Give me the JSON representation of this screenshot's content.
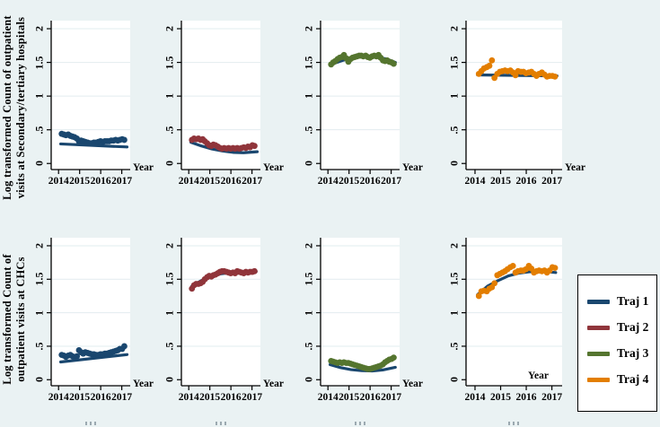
{
  "figure": {
    "background": "#eaf2f3",
    "row_labels": [
      {
        "line1": "Log transformed Count of outpatient",
        "line2": "visits at Secondary/tertiary hospitals"
      },
      {
        "line1": "Log transformed Count of",
        "line2": "outpatient visits at CHCs"
      }
    ]
  },
  "legend": {
    "items": [
      {
        "label": "Traj 1",
        "color": "#1a476f"
      },
      {
        "label": "Traj 2",
        "color": "#90353b"
      },
      {
        "label": "Traj 3",
        "color": "#55752f"
      },
      {
        "label": "Traj 4",
        "color": "#e37e00"
      }
    ]
  },
  "colors": {
    "background": "#eaf2f3",
    "plot_background": "#ffffff",
    "gridline": "#e2ecef",
    "axis": "#000000",
    "fit_line": "#1a476f"
  },
  "chart_data": {
    "type": "scatter",
    "xlabel": "Year",
    "xticks": [
      "2014",
      "2015",
      "2016",
      "2017"
    ],
    "yticks": [
      {
        "v": 0,
        "label": "0"
      },
      {
        "v": 0.5,
        "label": ".5"
      },
      {
        "v": 1,
        "label": "1"
      },
      {
        "v": 1.5,
        "label": "1.5"
      },
      {
        "v": 2,
        "label": "2"
      }
    ],
    "xlim": [
      2013.65,
      2017.4
    ],
    "ylim": [
      -0.09,
      2.12
    ],
    "grid": true,
    "legend_position": "right-of-bottom-row",
    "x_shared": [
      2014.15,
      2014.25,
      2014.35,
      2014.46,
      2014.56,
      2014.66,
      2014.76,
      2014.87,
      2014.97,
      2015.07,
      2015.17,
      2015.27,
      2015.38,
      2015.48,
      2015.58,
      2015.68,
      2015.79,
      2015.89,
      2015.99,
      2016.1,
      2016.2,
      2016.3,
      2016.4,
      2016.5,
      2016.61,
      2016.71,
      2016.81,
      2016.91,
      2017.02,
      2017.12
    ],
    "panels": [
      {
        "row": 0,
        "col": 0,
        "group": "Traj 1",
        "color": "#1a476f",
        "year_label_inside": false,
        "y": [
          0.44,
          0.43,
          0.42,
          0.43,
          0.41,
          0.4,
          0.39,
          0.37,
          0.33,
          0.34,
          0.33,
          0.32,
          0.31,
          0.3,
          0.3,
          0.31,
          0.31,
          0.32,
          0.33,
          0.32,
          0.33,
          0.33,
          0.33,
          0.34,
          0.34,
          0.35,
          0.34,
          0.35,
          0.36,
          0.35
        ],
        "fit_x": [
          2014.1,
          2017.25
        ],
        "fit_y": [
          0.29,
          0.245
        ]
      },
      {
        "row": 0,
        "col": 1,
        "group": "Traj 2",
        "color": "#90353b",
        "year_label_inside": false,
        "y": [
          0.35,
          0.37,
          0.36,
          0.37,
          0.35,
          0.36,
          0.33,
          0.3,
          0.27,
          0.26,
          0.28,
          0.27,
          0.25,
          0.23,
          0.22,
          0.23,
          0.22,
          0.23,
          0.22,
          0.23,
          0.22,
          0.23,
          0.22,
          0.23,
          0.24,
          0.23,
          0.25,
          0.24,
          0.27,
          0.26
        ],
        "fit_x": [
          2014.1,
          2014.6,
          2015.1,
          2015.6,
          2016.1,
          2016.6,
          2017.25
        ],
        "fit_y": [
          0.315,
          0.26,
          0.215,
          0.185,
          0.165,
          0.16,
          0.175
        ]
      },
      {
        "row": 0,
        "col": 2,
        "group": "Traj 3",
        "color": "#55752f",
        "year_label_inside": false,
        "y": [
          1.47,
          1.5,
          1.52,
          1.55,
          1.57,
          1.58,
          1.61,
          1.56,
          1.51,
          1.55,
          1.57,
          1.58,
          1.59,
          1.6,
          1.6,
          1.59,
          1.6,
          1.58,
          1.57,
          1.59,
          1.6,
          1.59,
          1.61,
          1.57,
          1.53,
          1.52,
          1.53,
          1.51,
          1.5,
          1.48
        ],
        "fit_x": [
          2014.15,
          2014.7,
          2015.2,
          2015.8,
          2016.3,
          2016.8,
          2017.2
        ],
        "fit_y": [
          1.47,
          1.53,
          1.57,
          1.59,
          1.58,
          1.55,
          1.5
        ]
      },
      {
        "row": 0,
        "col": 3,
        "group": "Traj 4",
        "color": "#e37e00",
        "year_label_inside": false,
        "y": [
          1.33,
          1.37,
          1.41,
          1.43,
          1.45,
          1.53,
          1.27,
          1.33,
          1.36,
          1.37,
          1.38,
          1.37,
          1.38,
          1.35,
          1.31,
          1.37,
          1.36,
          1.36,
          1.34,
          1.35,
          1.36,
          1.33,
          1.3,
          1.33,
          1.35,
          1.32,
          1.29,
          1.3,
          1.3,
          1.29
        ],
        "fit_x": [
          2014.1,
          2017.2
        ],
        "fit_y": [
          1.315,
          1.3
        ]
      },
      {
        "row": 1,
        "col": 0,
        "group": "Traj 1",
        "color": "#1a476f",
        "year_label_inside": false,
        "y": [
          0.37,
          0.36,
          0.34,
          0.36,
          0.37,
          0.35,
          0.34,
          0.35,
          0.44,
          0.41,
          0.39,
          0.41,
          0.4,
          0.39,
          0.38,
          0.38,
          0.37,
          0.37,
          0.38,
          0.38,
          0.39,
          0.39,
          0.4,
          0.41,
          0.42,
          0.43,
          0.44,
          0.46,
          0.46,
          0.5
        ],
        "fit_x": [
          2014.1,
          2017.25
        ],
        "fit_y": [
          0.265,
          0.375
        ]
      },
      {
        "row": 1,
        "col": 1,
        "group": "Traj 2",
        "color": "#90353b",
        "year_label_inside": false,
        "y": [
          1.36,
          1.41,
          1.43,
          1.43,
          1.44,
          1.46,
          1.5,
          1.53,
          1.55,
          1.54,
          1.56,
          1.57,
          1.59,
          1.61,
          1.62,
          1.62,
          1.61,
          1.6,
          1.59,
          1.6,
          1.59,
          1.62,
          1.61,
          1.6,
          1.59,
          1.61,
          1.6,
          1.61,
          1.61,
          1.62
        ],
        "fit_x": [
          2014.15,
          2014.6,
          2015.0,
          2015.5,
          2016.0,
          2016.6,
          2017.2
        ],
        "fit_y": [
          1.4,
          1.48,
          1.53,
          1.58,
          1.6,
          1.61,
          1.615
        ]
      },
      {
        "row": 1,
        "col": 2,
        "group": "Traj 3",
        "color": "#55752f",
        "year_label_inside": false,
        "y": [
          0.28,
          0.27,
          0.26,
          0.25,
          0.26,
          0.25,
          0.26,
          0.25,
          0.25,
          0.24,
          0.23,
          0.22,
          0.21,
          0.2,
          0.19,
          0.18,
          0.17,
          0.16,
          0.16,
          0.17,
          0.18,
          0.19,
          0.2,
          0.21,
          0.23,
          0.26,
          0.28,
          0.3,
          0.31,
          0.33
        ],
        "fit_x": [
          2014.1,
          2014.6,
          2015.1,
          2015.6,
          2016.1,
          2016.6,
          2017.2
        ],
        "fit_y": [
          0.225,
          0.18,
          0.15,
          0.135,
          0.13,
          0.145,
          0.185
        ]
      },
      {
        "row": 1,
        "col": 3,
        "group": "Traj 4",
        "color": "#e37e00",
        "year_label_inside": true,
        "y": [
          1.25,
          1.32,
          1.33,
          1.32,
          1.36,
          1.38,
          1.44,
          1.56,
          1.58,
          1.6,
          1.62,
          1.65,
          1.68,
          1.7,
          1.6,
          1.62,
          1.63,
          1.63,
          1.65,
          1.7,
          1.66,
          1.6,
          1.62,
          1.63,
          1.62,
          1.63,
          1.6,
          1.63,
          1.68,
          1.67
        ],
        "fit_x": [
          2014.1,
          2014.5,
          2014.9,
          2015.3,
          2015.7,
          2016.1,
          2016.6,
          2017.15
        ],
        "fit_y": [
          1.27,
          1.4,
          1.48,
          1.55,
          1.59,
          1.61,
          1.62,
          1.6
        ]
      }
    ]
  }
}
